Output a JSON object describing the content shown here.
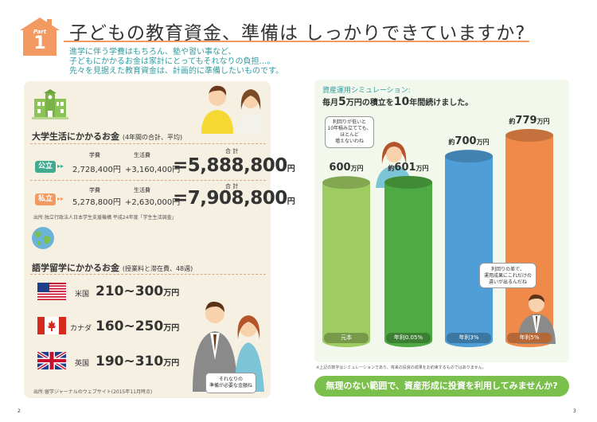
{
  "header": {
    "part_label": "Part",
    "part_number": "1",
    "title": "子どもの教育資金、準備は しっかりできていますか?",
    "intro_lines": [
      "進学に伴う学費はもちろん、塾や習い事など、",
      "子どもにかかるお金は家計にとってもそれなりの負担…。",
      "先々を見据えた教育資金は、計画的に準備したいものです。"
    ]
  },
  "university": {
    "title": "大学生活にかかるお金",
    "title_note": "(4年間の合計、平均)",
    "col_tuition": "学費",
    "col_living": "生活費",
    "col_total": "合 計",
    "public": {
      "label": "公立",
      "tuition": "2,728,400円",
      "living": "+3,160,400円",
      "total": "=5,888,800",
      "total_unit": "円"
    },
    "private": {
      "label": "私立",
      "tuition": "5,278,800円",
      "living": "+2,630,000円",
      "total": "=7,908,800",
      "total_unit": "円"
    },
    "source": "出所:独立行政法人日本学生支援機構 平成24年度「学生生活調査」"
  },
  "study_abroad": {
    "title": "語学留学にかかるお金",
    "title_note": "(授業料と滞在費、48週)",
    "countries": [
      {
        "name": "米国",
        "range": "210~300",
        "unit": "万円"
      },
      {
        "name": "カナダ",
        "range": "160~250",
        "unit": "万円"
      },
      {
        "name": "英国",
        "range": "190~310",
        "unit": "万円"
      }
    ],
    "bubble_lines": [
      "それなりの",
      "準備が必要な金額ね"
    ],
    "source": "出所:留学ジャーナルのウェブサイト(2015年11月時点)"
  },
  "pages": {
    "left": "2",
    "right": "3"
  },
  "simulation": {
    "title": "資産運用シミュレーション:",
    "subtitle_pre": "毎月",
    "subtitle_num": "5",
    "subtitle_mid": "万円の積立を",
    "subtitle_num2": "10",
    "subtitle_post": "年間続けました。",
    "bubble_woman": [
      "利回りが低いと",
      "10年積み立てても、",
      "ほとんど",
      "増えないわね"
    ],
    "bubble_man": [
      "利回りの差で、",
      "運用成果にこれだけの",
      "違いが出るんだね"
    ],
    "footnote": "※上記の数字はシミュレーションであり、将来の投資の成果をお約束するものではありません。",
    "cta": "無理のない範囲で、資産形成に投資を利用してみませんか?"
  },
  "chart_data": {
    "type": "bar",
    "title": "",
    "xlabel": "",
    "ylabel": "",
    "categories": [
      "元本",
      "年利0.05%",
      "年利3%",
      "年利5%"
    ],
    "values": [
      600,
      601,
      700,
      779
    ],
    "value_prefix": [
      "",
      "約",
      "約",
      "約"
    ],
    "value_unit": "万円",
    "colors": [
      "#9fcc62",
      "#4faa43",
      "#4f9ed8",
      "#f08a4b"
    ],
    "ylim": [
      0,
      779
    ],
    "grid": false
  }
}
